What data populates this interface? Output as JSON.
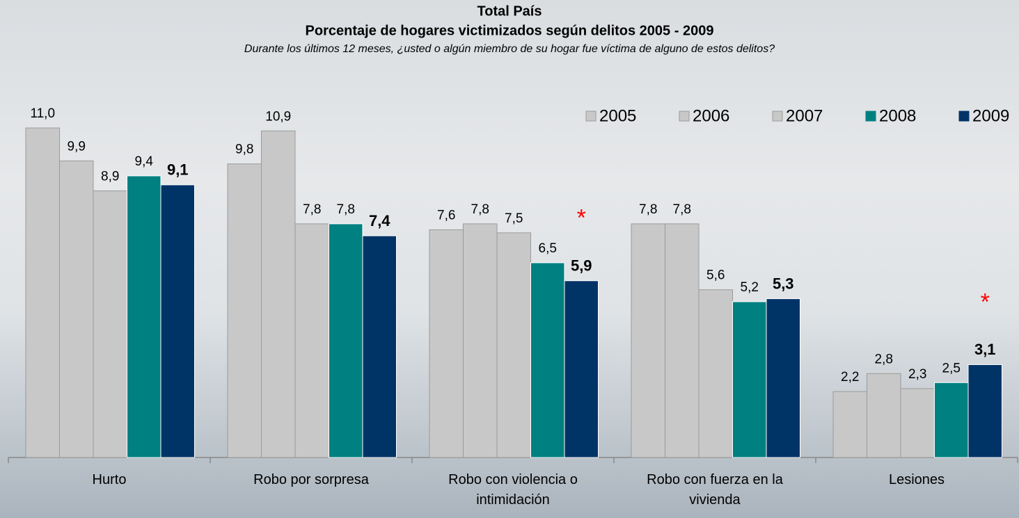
{
  "chart_data": {
    "type": "bar",
    "title": "Total País",
    "subtitle": "Porcentaje de hogares victimizados según delitos 2005 - 2009",
    "note": "Durante los últimos 12 meses, ¿usted o algún miembro de su hogar fue víctima de alguno de estos delitos?",
    "categories": [
      "Hurto",
      "Robo por sorpresa",
      "Robo con violencia o intimidación",
      "Robo con fuerza en la vivienda",
      "Lesiones"
    ],
    "series": [
      {
        "name": "2005",
        "color": "#c8c8c8",
        "values": [
          11.0,
          9.8,
          7.6,
          7.8,
          2.2
        ],
        "value_labels": [
          "11,0",
          "9,8",
          "7,6",
          "7,8",
          "2,2"
        ]
      },
      {
        "name": "2006",
        "color": "#c8c8c8",
        "values": [
          9.9,
          10.9,
          7.8,
          7.8,
          2.8
        ],
        "value_labels": [
          "9,9",
          "10,9",
          "7,8",
          "7,8",
          "2,8"
        ]
      },
      {
        "name": "2007",
        "color": "#c8c8c8",
        "values": [
          8.9,
          7.8,
          7.5,
          5.6,
          2.3
        ],
        "value_labels": [
          "8,9",
          "7,8",
          "7,5",
          "5,6",
          "2,3"
        ]
      },
      {
        "name": "2008",
        "color": "#008080",
        "values": [
          9.4,
          7.8,
          6.5,
          5.2,
          2.5
        ],
        "value_labels": [
          "9,4",
          "7,8",
          "6,5",
          "5,2",
          "2,5"
        ]
      },
      {
        "name": "2009",
        "color": "#003366",
        "values": [
          9.1,
          7.4,
          5.9,
          5.3,
          3.1
        ],
        "value_labels": [
          "9,1",
          "7,4",
          "5,9",
          "5,3",
          "3,1"
        ],
        "label_bold": true
      }
    ],
    "annotations": [
      "*",
      "*"
    ],
    "annotation_color": "#ff0000",
    "legend": "upper right"
  }
}
